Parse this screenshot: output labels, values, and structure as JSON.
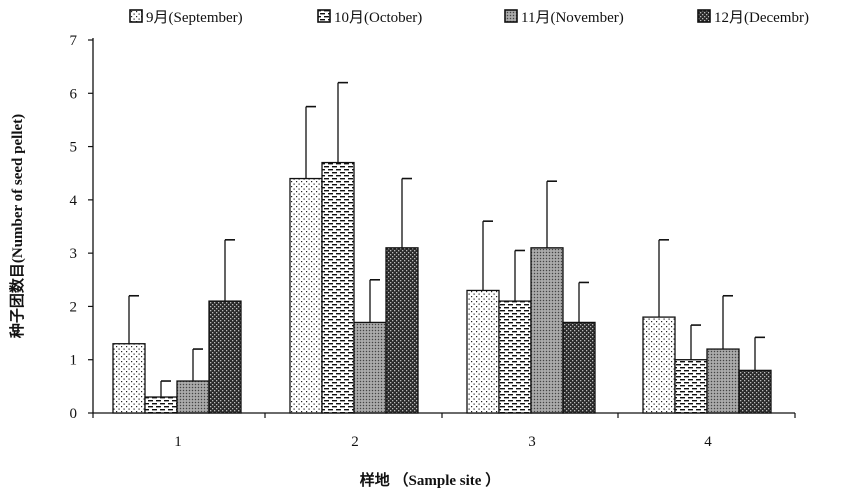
{
  "chart_data": {
    "type": "bar",
    "title": "",
    "xlabel": "样地 （Sample site ）",
    "ylabel": "种子团数目(Number of seed pellet)",
    "categories": [
      "1",
      "2",
      "3",
      "4"
    ],
    "ylim": [
      0,
      7
    ],
    "yticks": [
      "0",
      "1",
      "2",
      "3",
      "4",
      "5",
      "6",
      "7"
    ],
    "grid": false,
    "legend_position": "top",
    "error_bars": "upper standard error caps",
    "series": [
      {
        "name": "9月(September)",
        "pattern": "dots",
        "values": [
          1.3,
          4.4,
          2.3,
          1.8
        ],
        "errors": [
          0.9,
          1.35,
          1.3,
          1.45
        ]
      },
      {
        "name": "10月(October)",
        "pattern": "dashes",
        "values": [
          0.3,
          4.7,
          2.1,
          1.0
        ],
        "errors": [
          0.3,
          1.5,
          0.95,
          0.65
        ]
      },
      {
        "name": "11月(November)",
        "pattern": "stipple-gray",
        "values": [
          0.6,
          1.7,
          3.1,
          1.2
        ],
        "errors": [
          0.6,
          0.8,
          1.25,
          1.0
        ]
      },
      {
        "name": "12月(Decembr)",
        "pattern": "dense-dark",
        "values": [
          2.1,
          3.1,
          1.7,
          0.8
        ],
        "errors": [
          1.15,
          1.3,
          0.75,
          0.62
        ]
      }
    ]
  }
}
